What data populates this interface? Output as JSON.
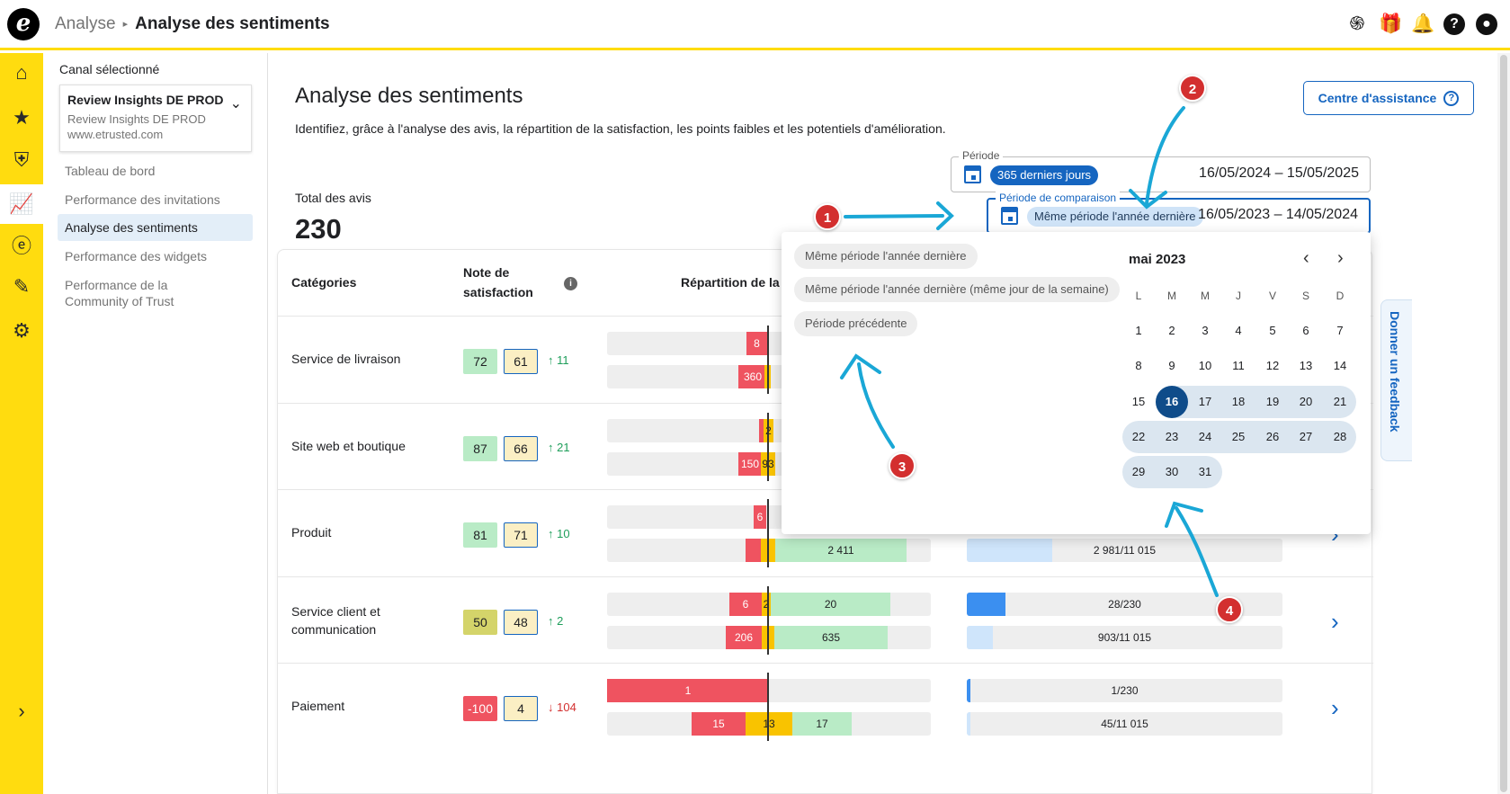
{
  "header": {
    "breadcrumb_parent": "Analyse",
    "breadcrumb_current": "Analyse des sentiments",
    "logo_letter": "e",
    "icons": [
      "fingerprint-icon",
      "gift-icon",
      "bell-icon",
      "help-icon",
      "account-icon"
    ]
  },
  "sidebar": {
    "channel_label": "Canal sélectionné",
    "channel_name": "Review Insights DE PROD",
    "channel_sub": "Review Insights DE PROD",
    "channel_url": "www.etrusted.com",
    "items": [
      {
        "label": "Tableau de bord"
      },
      {
        "label": "Performance des invitations"
      },
      {
        "label": "Analyse des sentiments"
      },
      {
        "label": "Performance des widgets"
      },
      {
        "label": "Performance de la Community of Trust"
      }
    ]
  },
  "page": {
    "title": "Analyse des sentiments",
    "subtitle": "Identifiez, grâce à l'analyse des avis, la répartition de la satisfaction, les points faibles et les potentiels d'amélioration.",
    "help_button": "Centre d'assistance",
    "total_label": "Total des avis",
    "total_value": "230"
  },
  "period": {
    "legend": "Période",
    "chip": "365 derniers jours",
    "dates": "16/05/2024 – 15/05/2025"
  },
  "comparison": {
    "legend": "Période de comparaison",
    "chip": "Même période l'année dernière",
    "dates": "16/05/2023 – 14/05/2024",
    "checked": true
  },
  "table": {
    "col_categories": "Catégories",
    "col_score_1": "Note de",
    "col_score_2": "satisfaction",
    "col_distribution": "Répartition de la sa",
    "rows": [
      {
        "name": "Service de livraison",
        "name2": "",
        "score": "72",
        "prev": "61",
        "trend": "11",
        "dir": "up",
        "bar1": [
          {
            "c": "r",
            "v": "8"
          }
        ],
        "bar2": [
          {
            "c": "r",
            "v": "360"
          },
          {
            "c": "y",
            "v": ""
          }
        ],
        "count1": "",
        "count2": "",
        "fill1": 0,
        "fill2": 0
      },
      {
        "name": "Site web et boutique",
        "name2": "",
        "score": "87",
        "prev": "66",
        "trend": "21",
        "dir": "up",
        "bar1": [
          {
            "c": "r",
            "v": ""
          },
          {
            "c": "y",
            "v": "2"
          }
        ],
        "bar2": [
          {
            "c": "r",
            "v": "150"
          },
          {
            "c": "y",
            "v": "93"
          }
        ],
        "count1": "",
        "count2": "",
        "fill1": 0,
        "fill2": 0
      },
      {
        "name": "Produit",
        "name2": "",
        "score": "81",
        "prev": "71",
        "trend": "10",
        "dir": "up",
        "bar1": [
          {
            "c": "r",
            "v": "6"
          }
        ],
        "bar2": [
          {
            "c": "r",
            "v": ""
          },
          {
            "c": "y",
            "v": ""
          },
          {
            "c": "g",
            "v": "2 411"
          }
        ],
        "count1": "",
        "count2": "2 981/11 015",
        "fill1": 0,
        "fill2": 0.27
      },
      {
        "name": "Service client et",
        "name2": "communication",
        "score": "50",
        "prev": "48",
        "trend": "2",
        "dir": "up",
        "bar1": [
          {
            "c": "r",
            "v": "6"
          },
          {
            "c": "y",
            "v": "2"
          },
          {
            "c": "g",
            "v": "20"
          }
        ],
        "bar2": [
          {
            "c": "r",
            "v": "206"
          },
          {
            "c": "y",
            "v": ""
          },
          {
            "c": "g",
            "v": "635"
          }
        ],
        "count1": "28/230",
        "count2": "903/11 015",
        "fill1": 0.122,
        "fill2": 0.082
      },
      {
        "name": "Paiement",
        "name2": "",
        "score": "-100",
        "prev": "4",
        "trend": "104",
        "dir": "down",
        "bar1": [
          {
            "c": "r",
            "v": "1"
          }
        ],
        "bar2": [
          {
            "c": "r",
            "v": "15"
          },
          {
            "c": "y",
            "v": "13"
          },
          {
            "c": "g",
            "v": "17"
          }
        ],
        "count1": "1/230",
        "count2": "45/11 015",
        "fill1": 0.004,
        "fill2": 0.004
      }
    ]
  },
  "popup": {
    "options": [
      "Même période l'année dernière",
      "Même période l'année dernière (même jour de la semaine)",
      "Période précédente"
    ],
    "month_title": "mai 2023",
    "weekdays": [
      "L",
      "M",
      "M",
      "J",
      "V",
      "S",
      "D"
    ],
    "weeks": [
      [
        "1",
        "2",
        "3",
        "4",
        "5",
        "6",
        "7"
      ],
      [
        "8",
        "9",
        "10",
        "11",
        "12",
        "13",
        "14"
      ],
      [
        "15",
        "16",
        "17",
        "18",
        "19",
        "20",
        "21"
      ],
      [
        "22",
        "23",
        "24",
        "25",
        "26",
        "27",
        "28"
      ],
      [
        "29",
        "30",
        "31",
        "",
        "",
        "",
        ""
      ]
    ],
    "selected_day": "16"
  },
  "feedback_tab": "Donner un feedback",
  "annotations": [
    "1",
    "2",
    "3",
    "4"
  ],
  "colors": {
    "accent": "#FFDC0F",
    "primary": "#1565c0",
    "red": "#ef5360",
    "yellow": "#f9c300",
    "green": "#b9ebc6",
    "annotation": "#d32f2f",
    "arrow": "#1aa7d6"
  }
}
